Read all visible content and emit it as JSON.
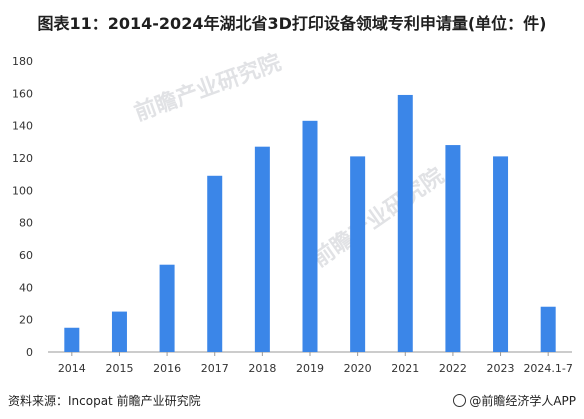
{
  "title": "图表11：2014-2024年湖北省3D打印设备领域专利申请量(单位：件)",
  "footer": {
    "source": "资料来源：Incopat 前瞻产业研究院",
    "brand": "@前瞻经济学人APP"
  },
  "watermark": "前瞻产业研究院",
  "colors": {
    "bar": "#3b86e8",
    "axis": "#999999",
    "text": "#333333"
  },
  "chart_data": {
    "type": "bar",
    "title": "图表11：2014-2024年湖北省3D打印设备领域专利申请量(单位：件)",
    "xlabel": "",
    "ylabel": "",
    "categories": [
      "2014",
      "2015",
      "2016",
      "2017",
      "2018",
      "2019",
      "2020",
      "2021",
      "2022",
      "2023",
      "2024.1-7"
    ],
    "values": [
      15,
      25,
      54,
      109,
      127,
      143,
      121,
      159,
      128,
      121,
      28
    ],
    "ylim": [
      0,
      180
    ],
    "yticks": [
      0,
      20,
      40,
      60,
      80,
      100,
      120,
      140,
      160,
      180
    ],
    "grid": false,
    "legend": "none"
  }
}
